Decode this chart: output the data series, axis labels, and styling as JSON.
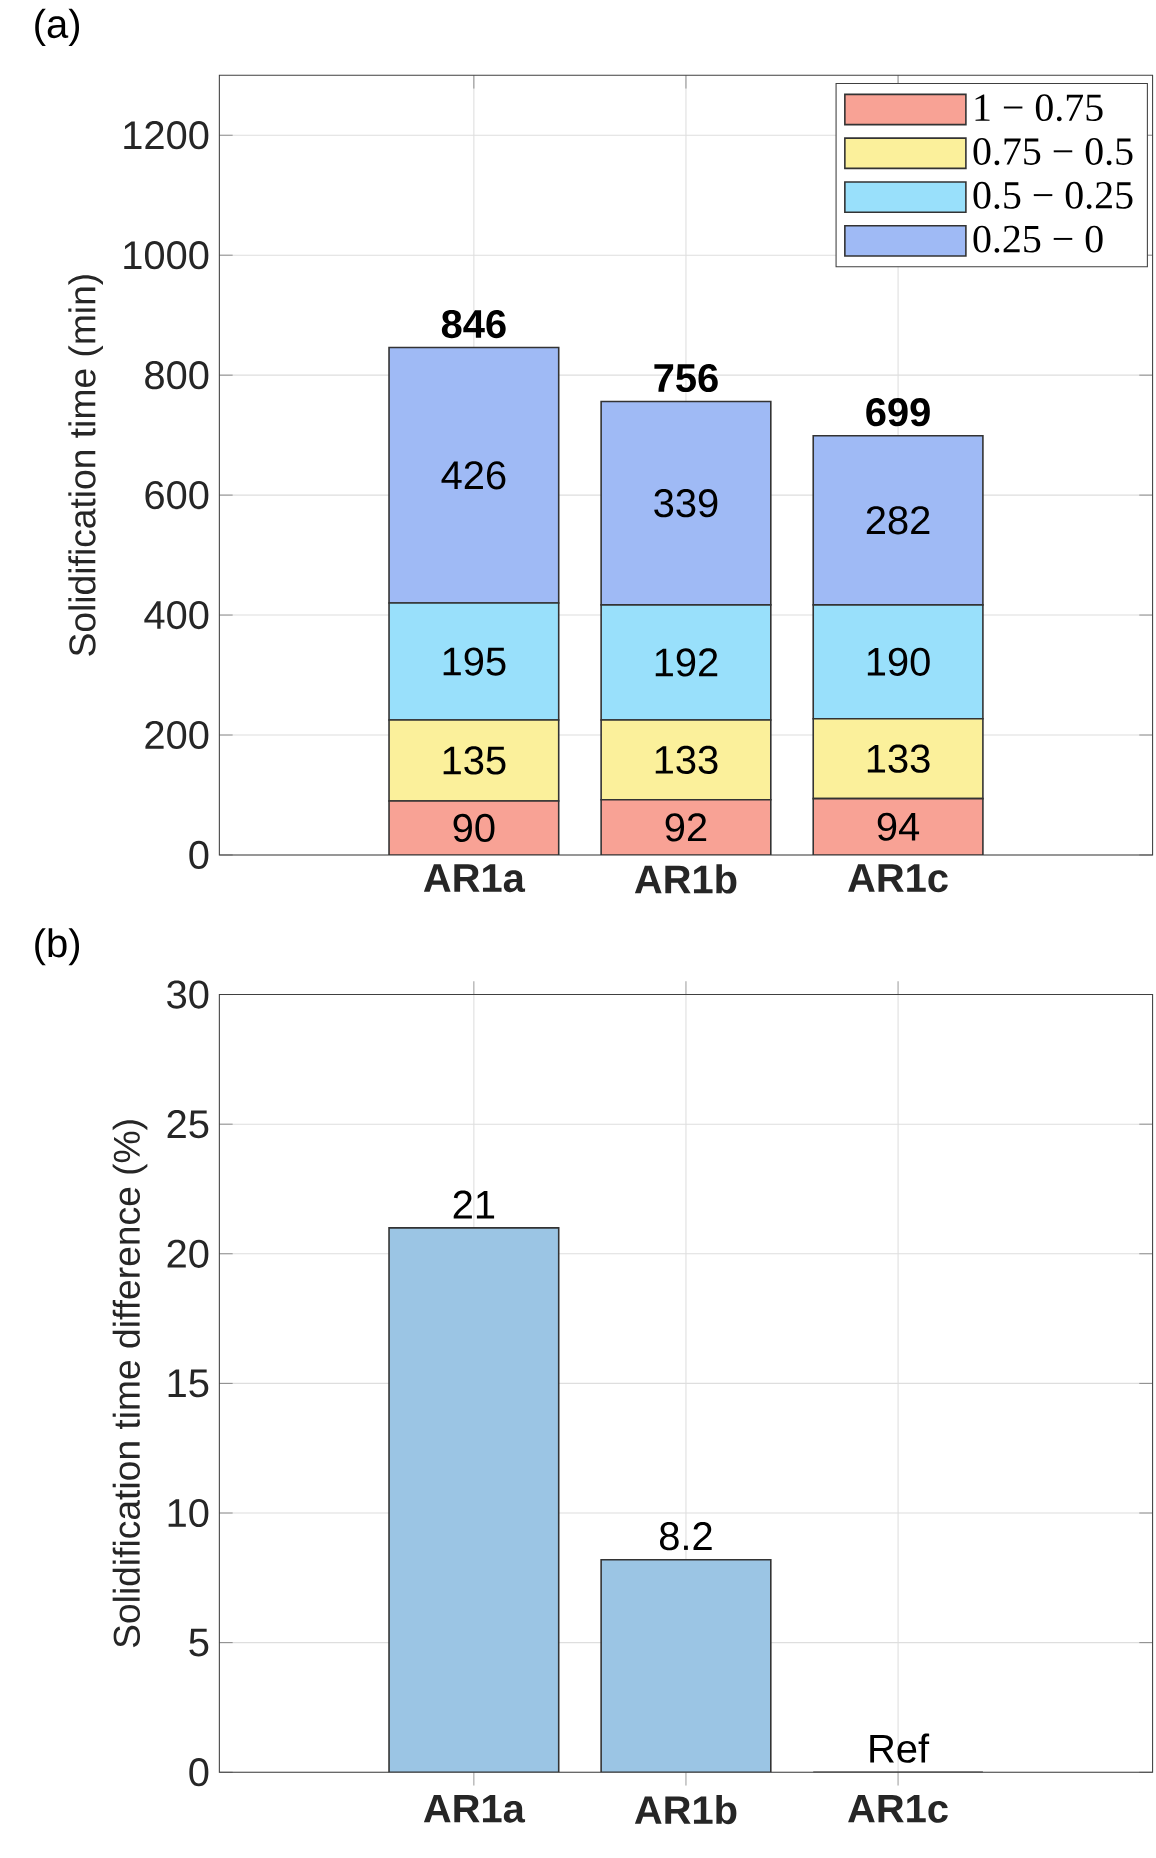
{
  "chart_data": [
    {
      "type": "bar",
      "title": "(a)",
      "ylabel": "Solidification time (min)",
      "categories": [
        "AR1a",
        "AR1b",
        "AR1c"
      ],
      "stacked": true,
      "totals": [
        "846",
        "756",
        "699"
      ],
      "ylim": [
        0,
        1300
      ],
      "yticks": [
        0,
        200,
        400,
        600,
        800,
        1000,
        1200
      ],
      "grid": true,
      "legend": "top right",
      "series": [
        {
          "name": "1 − 0.75",
          "color": "#f8a295",
          "values": [
            90,
            92,
            94
          ],
          "value_labels": [
            "90",
            "92",
            "94"
          ]
        },
        {
          "name": "0.75 − 0.5",
          "color": "#fbf09b",
          "values": [
            135,
            133,
            133
          ],
          "value_labels": [
            "135",
            "133",
            "133"
          ]
        },
        {
          "name": "0.5 − 0.25",
          "color": "#99e0fb",
          "values": [
            195,
            192,
            190
          ],
          "value_labels": [
            "195",
            "192",
            "190"
          ]
        },
        {
          "name": "0.25 − 0",
          "color": "#9fbaf5",
          "values": [
            426,
            339,
            282
          ],
          "value_labels": [
            "426",
            "339",
            "282"
          ]
        }
      ]
    },
    {
      "type": "bar",
      "title": "(b)",
      "ylabel": "Solidification time difference (%)",
      "categories": [
        "AR1a",
        "AR1b",
        "AR1c"
      ],
      "values": [
        21,
        8.2,
        0
      ],
      "color": "#9bc5e4",
      "value_labels": [
        "21",
        "8.2",
        "Ref"
      ],
      "ylim": [
        0,
        30
      ],
      "yticks": [
        0,
        5,
        10,
        15,
        20,
        25,
        30
      ],
      "grid": true
    }
  ]
}
